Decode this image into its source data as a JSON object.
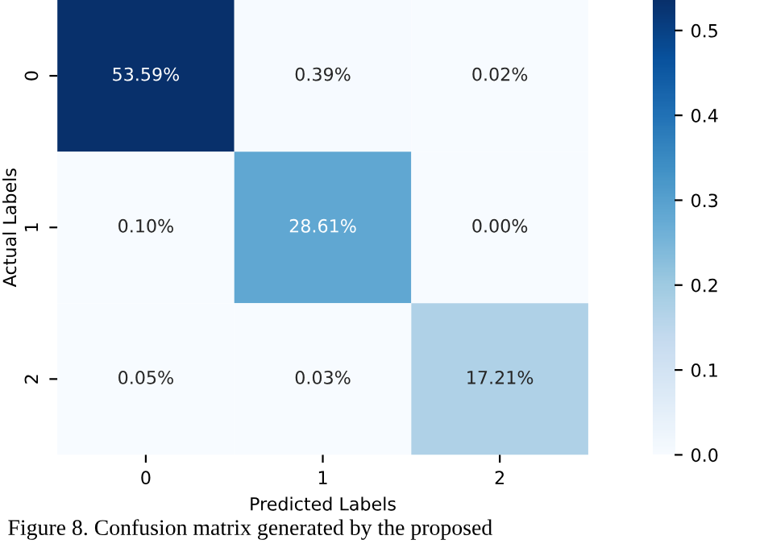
{
  "chart_data": {
    "type": "heatmap",
    "xlabel": "Predicted Labels",
    "ylabel": "Actual Labels",
    "categories": [
      "0",
      "1",
      "2"
    ],
    "y_categories": [
      "0",
      "1",
      "2"
    ],
    "cells": [
      [
        0.5359,
        0.0039,
        0.0002
      ],
      [
        0.001,
        0.2861,
        0.0
      ],
      [
        0.0005,
        0.0003,
        0.1721
      ]
    ],
    "cell_labels": [
      [
        "53.59%",
        "0.39%",
        "0.02%"
      ],
      [
        "0.10%",
        "28.61%",
        "0.00%"
      ],
      [
        "0.05%",
        "0.03%",
        "17.21%"
      ]
    ],
    "clim": [
      0.0,
      0.5359
    ],
    "cticks": [
      {
        "value": 0.0,
        "label": "0.0"
      },
      {
        "value": 0.1,
        "label": "0.1"
      },
      {
        "value": 0.2,
        "label": "0.2"
      },
      {
        "value": 0.3,
        "label": "0.3"
      },
      {
        "value": 0.4,
        "label": "0.4"
      },
      {
        "value": 0.5,
        "label": "0.5"
      }
    ],
    "annotations": [
      "Figure 8. Confusion matrix generated by the proposed"
    ]
  }
}
